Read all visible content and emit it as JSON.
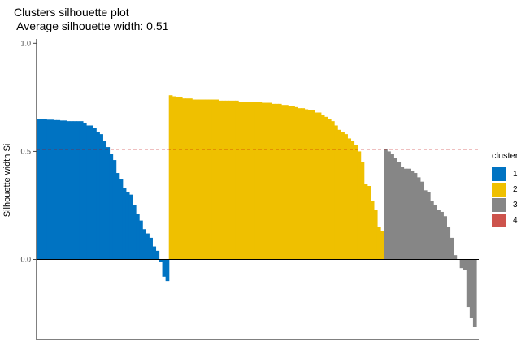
{
  "chart_data": {
    "type": "bar",
    "title": "Clusters silhouette plot",
    "subtitle": " Average silhouette width: 0.51",
    "xlabel": "",
    "ylabel": "Silhouette width Si",
    "ylim": [
      -0.37,
      1.02
    ],
    "yticks": [
      "0.0",
      "0.5",
      "1.0"
    ],
    "ytick_values": [
      0.0,
      0.5,
      1.0
    ],
    "reference_line": {
      "value": 0.51,
      "color": "#C00000",
      "style": "dashed"
    },
    "legend": {
      "title": "cluster",
      "placement": "right"
    },
    "series": [
      {
        "name": "1",
        "color": "#0073C2",
        "values": [
          0.65,
          0.65,
          0.65,
          0.647,
          0.647,
          0.645,
          0.645,
          0.643,
          0.643,
          0.64,
          0.64,
          0.64,
          0.64,
          0.64,
          0.63,
          0.62,
          0.62,
          0.61,
          0.59,
          0.58,
          0.55,
          0.52,
          0.49,
          0.46,
          0.4,
          0.37,
          0.33,
          0.31,
          0.3,
          0.25,
          0.21,
          0.18,
          0.14,
          0.12,
          0.1,
          0.06,
          0.04,
          -0.01,
          -0.08,
          -0.1
        ]
      },
      {
        "name": "2",
        "color": "#EFC000",
        "values": [
          0.76,
          0.755,
          0.75,
          0.75,
          0.745,
          0.745,
          0.745,
          0.74,
          0.74,
          0.74,
          0.74,
          0.74,
          0.74,
          0.74,
          0.74,
          0.735,
          0.735,
          0.735,
          0.735,
          0.735,
          0.735,
          0.73,
          0.73,
          0.73,
          0.73,
          0.73,
          0.73,
          0.73,
          0.725,
          0.725,
          0.725,
          0.72,
          0.72,
          0.72,
          0.715,
          0.715,
          0.71,
          0.71,
          0.705,
          0.7,
          0.7,
          0.695,
          0.69,
          0.69,
          0.68,
          0.68,
          0.67,
          0.66,
          0.65,
          0.64,
          0.62,
          0.6,
          0.59,
          0.58,
          0.56,
          0.55,
          0.53,
          0.5,
          0.45,
          0.35,
          0.34,
          0.27,
          0.23,
          0.15,
          0.13
        ]
      },
      {
        "name": "3",
        "color": "#868686",
        "values": [
          0.51,
          0.5,
          0.49,
          0.47,
          0.45,
          0.43,
          0.42,
          0.42,
          0.41,
          0.4,
          0.38,
          0.36,
          0.32,
          0.31,
          0.27,
          0.25,
          0.23,
          0.22,
          0.2,
          0.15,
          0.1,
          0.02,
          0.0,
          -0.04,
          -0.05,
          -0.22,
          -0.27,
          -0.31
        ]
      },
      {
        "name": "4",
        "color": "#CD534C",
        "values": []
      }
    ]
  }
}
